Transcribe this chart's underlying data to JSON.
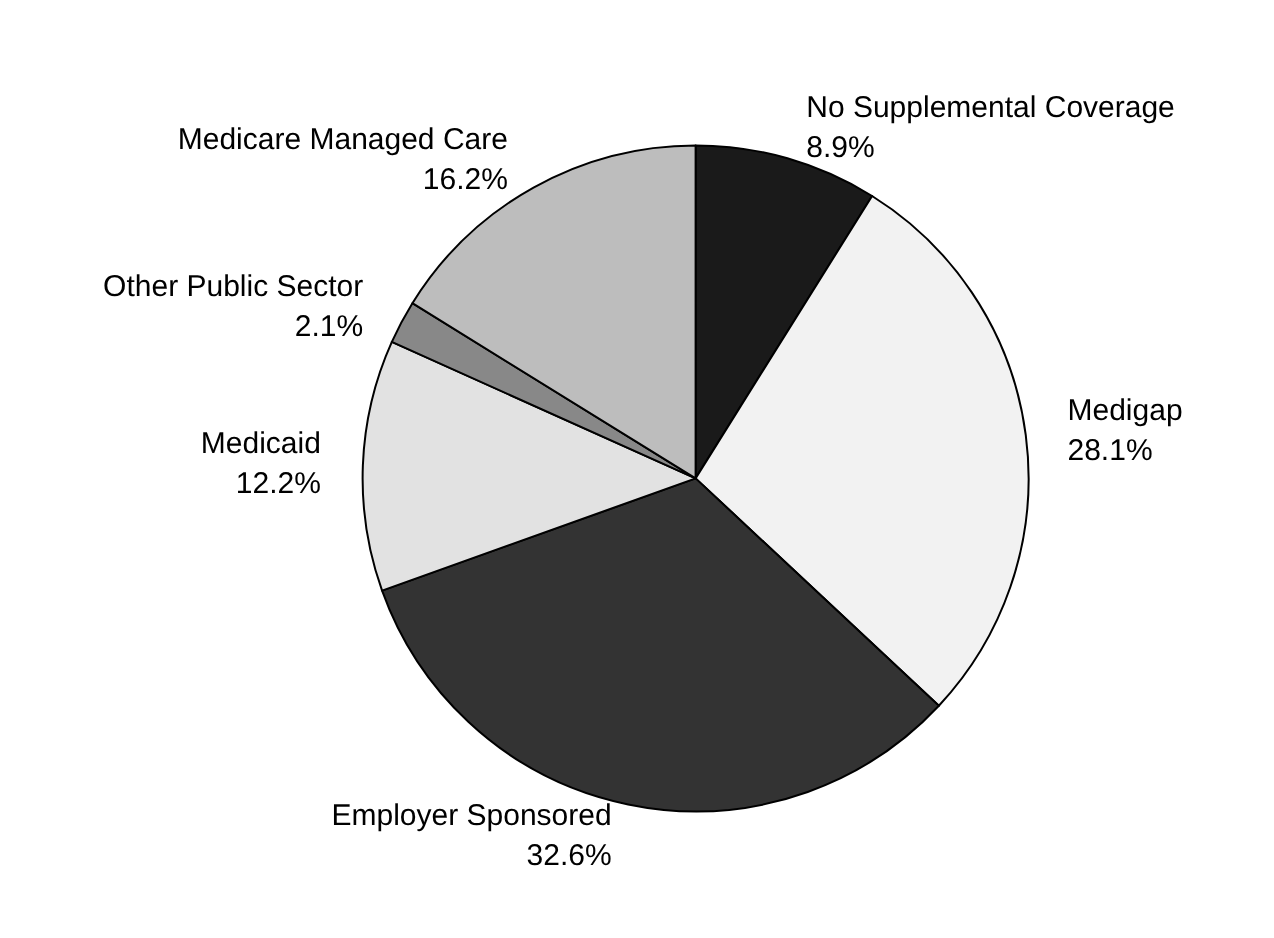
{
  "chart_data": {
    "type": "pie",
    "categories": [
      "No Supplemental Coverage",
      "Medigap",
      "Employer Sponsored",
      "Medicaid",
      "Other Public Sector",
      "Medicare Managed Care"
    ],
    "values": [
      8.9,
      28.1,
      32.6,
      12.2,
      2.1,
      16.2
    ],
    "value_labels": [
      "8.9%",
      "28.1%",
      "32.6%",
      "12.2%",
      "2.1%",
      "16.2%"
    ],
    "colors": [
      "#1a1a1a",
      "#f2f2f2",
      "#333333",
      "#e2e2e2",
      "#888888",
      "#bdbdbd"
    ],
    "legend": false
  }
}
